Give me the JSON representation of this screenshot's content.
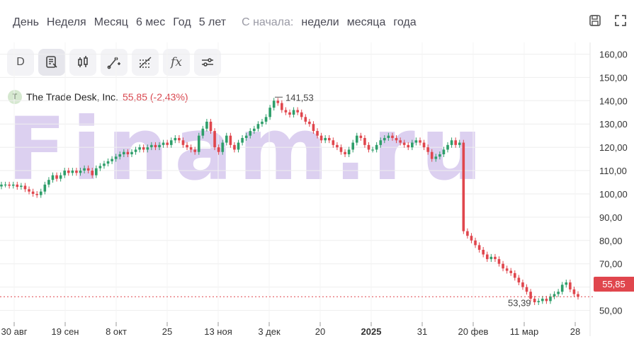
{
  "periods": {
    "day": "День",
    "week": "Неделя",
    "month": "Месяц",
    "six_months": "6 мес",
    "year": "Год",
    "five_years": "5 лет",
    "since_label": "С начала:",
    "since_week": "недели",
    "since_month": "месяца",
    "since_year": "года"
  },
  "toolbar": {
    "interval": "D",
    "fx": "fx"
  },
  "legend": {
    "logo_letter": "T",
    "name": "The Trade Desk, Inc.",
    "price": "55,85 (-2,43%)"
  },
  "watermark": "Finam.ru",
  "current_price_label": "55,85",
  "colors": {
    "up": "#2e9e6a",
    "down": "#e0464d",
    "grid": "#eeeeee",
    "axis_text": "#333333"
  },
  "chart_data": {
    "type": "candlestick",
    "ylim": [
      45,
      165
    ],
    "y_ticks": [
      50,
      60,
      70,
      80,
      90,
      100,
      110,
      120,
      130,
      140,
      150,
      160
    ],
    "y_tick_labels": [
      "50,00",
      "60,00",
      "70,00",
      "80,00",
      "90,00",
      "100,00",
      "110,00",
      "120,00",
      "130,00",
      "140,00",
      "150,00",
      "160,00"
    ],
    "x_tick_labels": [
      "30 авг",
      "19 сен",
      "8 окт",
      "25",
      "13 ноя",
      "3 дек",
      "20",
      "2025",
      "31",
      "20 фев",
      "11 мар",
      "28"
    ],
    "annotations": {
      "high": "141,53",
      "low": "53,39"
    },
    "last_price": 55.85,
    "closes": [
      104,
      104,
      103.5,
      104,
      103,
      103.5,
      102,
      101,
      100,
      99.5,
      101,
      104,
      106,
      108,
      106.5,
      108,
      110,
      109,
      110,
      109,
      110,
      111,
      110,
      108,
      111,
      112,
      113,
      114,
      115,
      116,
      117,
      118,
      117,
      118,
      119,
      120,
      119,
      120,
      121,
      120,
      121,
      122,
      121,
      123,
      124,
      123,
      121,
      120,
      119,
      118,
      125,
      128,
      131,
      127,
      120,
      118,
      122,
      125,
      121,
      119,
      122,
      124,
      125,
      127,
      128,
      130,
      131,
      133,
      137,
      140,
      139,
      136,
      135,
      134,
      136,
      135,
      133,
      131,
      130,
      127,
      125,
      123,
      124,
      123,
      121,
      120,
      118,
      117,
      119,
      122,
      125,
      124,
      121,
      119,
      119,
      121,
      123,
      124,
      125,
      124,
      123,
      122,
      121,
      120,
      122,
      123,
      122,
      120,
      118,
      115,
      116,
      117,
      119,
      121,
      123,
      121,
      122,
      84,
      82,
      80,
      78,
      76,
      74,
      72,
      73,
      72,
      70,
      68,
      67,
      66,
      64,
      62,
      60,
      58,
      55,
      53.5,
      54,
      55,
      54,
      56,
      57,
      58,
      61,
      62,
      59,
      57,
      55.85
    ]
  }
}
